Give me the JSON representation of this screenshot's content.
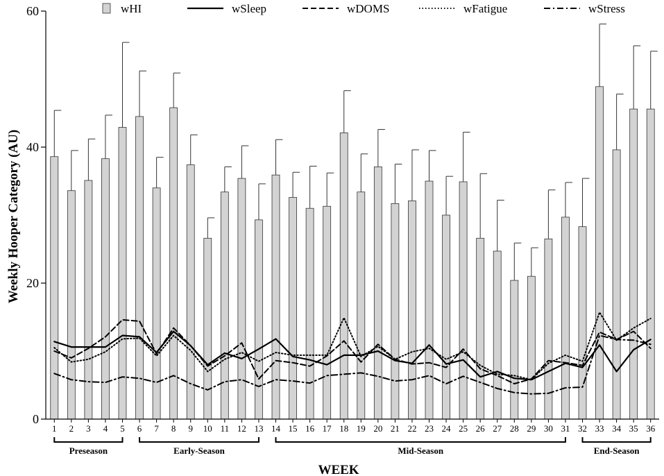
{
  "chart_data": {
    "type": "bar",
    "title": "",
    "xlabel": "WEEK",
    "ylabel": "Weekly Hooper Category (AU)",
    "ylim": [
      0,
      60
    ],
    "yticks": [
      0,
      20,
      40,
      60
    ],
    "categories": [
      "1",
      "2",
      "3",
      "4",
      "5",
      "6",
      "7",
      "8",
      "9",
      "10",
      "11",
      "12",
      "13",
      "14",
      "15",
      "16",
      "17",
      "18",
      "19",
      "20",
      "21",
      "22",
      "23",
      "24",
      "25",
      "26",
      "27",
      "28",
      "29",
      "30",
      "31",
      "32",
      "33",
      "34",
      "35",
      "36"
    ],
    "legend": [
      "wHI",
      "wSleep",
      "wDOMS",
      "wFatigue",
      "wStress"
    ],
    "bars": {
      "name": "wHI",
      "color": "#d3d3d3",
      "values": [
        38.6,
        33.6,
        35.1,
        38.3,
        42.9,
        44.5,
        34.0,
        45.8,
        37.4,
        26.6,
        33.4,
        35.4,
        29.3,
        35.9,
        32.6,
        31.0,
        31.3,
        42.1,
        33.4,
        37.1,
        31.7,
        32.1,
        35.0,
        30.0,
        34.9,
        26.6,
        24.7,
        20.4,
        21.0,
        26.5,
        29.7,
        28.3,
        48.9,
        39.6,
        45.6,
        45.6
      ],
      "errors": [
        6.8,
        5.9,
        6.1,
        6.4,
        12.5,
        6.7,
        4.5,
        5.1,
        4.4,
        3.0,
        3.7,
        4.8,
        5.3,
        5.2,
        3.7,
        6.2,
        4.9,
        6.2,
        5.6,
        5.5,
        5.8,
        7.5,
        4.5,
        5.7,
        7.3,
        9.5,
        7.5,
        5.5,
        4.2,
        7.2,
        5.1,
        7.1,
        9.2,
        8.2,
        9.3,
        8.5
      ]
    },
    "series": [
      {
        "name": "wSleep",
        "dash": "solid",
        "values": [
          11.4,
          10.6,
          10.6,
          10.6,
          12.3,
          12.1,
          9.8,
          12.9,
          10.8,
          8.0,
          9.7,
          8.9,
          10.3,
          11.8,
          9.2,
          8.7,
          8.0,
          9.4,
          9.4,
          10.0,
          8.6,
          8.2,
          10.9,
          8.1,
          8.7,
          6.2,
          7.0,
          6.0,
          5.8,
          7.0,
          8.2,
          7.6,
          10.9,
          7.0,
          10.2,
          11.7
        ]
      },
      {
        "name": "wDOMS",
        "dash": "dashed",
        "values": [
          10.0,
          9.0,
          10.4,
          12.1,
          14.6,
          14.4,
          9.6,
          13.4,
          10.8,
          7.8,
          9.3,
          11.2,
          5.9,
          8.6,
          8.3,
          7.8,
          9.3,
          11.5,
          8.4,
          11.0,
          8.8,
          8.1,
          8.3,
          7.6,
          10.3,
          7.4,
          6.4,
          5.2,
          5.9,
          8.6,
          8.3,
          7.9,
          12.8,
          11.7,
          12.9,
          10.4
        ]
      },
      {
        "name": "wFatigue",
        "dash": "dotted",
        "values": [
          10.5,
          8.4,
          8.8,
          9.9,
          11.8,
          11.9,
          9.3,
          12.3,
          10.1,
          7.0,
          8.8,
          9.8,
          8.5,
          9.8,
          9.4,
          9.4,
          9.4,
          14.9,
          9.2,
          10.7,
          8.8,
          9.9,
          10.4,
          8.8,
          9.9,
          7.9,
          6.6,
          6.4,
          5.8,
          8.2,
          9.4,
          8.5,
          15.7,
          11.6,
          13.4,
          14.8
        ]
      },
      {
        "name": "wStress",
        "dash": "dashdot",
        "values": [
          6.7,
          5.8,
          5.5,
          5.4,
          6.2,
          6.0,
          5.4,
          6.4,
          5.2,
          4.3,
          5.5,
          5.8,
          4.8,
          5.8,
          5.6,
          5.3,
          6.4,
          6.6,
          6.8,
          6.3,
          5.6,
          5.8,
          6.4,
          5.2,
          6.3,
          5.4,
          4.5,
          3.9,
          3.7,
          3.8,
          4.6,
          4.7,
          12.3,
          11.7,
          11.6,
          11.0
        ]
      }
    ],
    "phases": [
      {
        "label": "Preseason",
        "start": 1,
        "end": 5
      },
      {
        "label": "Early-Season",
        "start": 6,
        "end": 13
      },
      {
        "label": "Mid-Season",
        "start": 14,
        "end": 31
      },
      {
        "label": "End-Season",
        "start": 32,
        "end": 36
      }
    ],
    "grid": false,
    "legend_position": "top"
  }
}
